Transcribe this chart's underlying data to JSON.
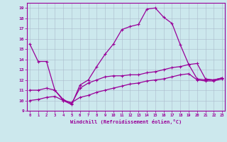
{
  "xlabel": "Windchill (Refroidissement éolien,°C)",
  "bg_color": "#cce8ed",
  "line_color": "#990099",
  "grid_color": "#aabbcc",
  "x_ticks": [
    0,
    1,
    2,
    3,
    4,
    5,
    6,
    7,
    8,
    9,
    10,
    11,
    12,
    13,
    14,
    15,
    16,
    17,
    18,
    19,
    20,
    21,
    22,
    23
  ],
  "y_ticks": [
    9,
    10,
    11,
    12,
    13,
    14,
    15,
    16,
    17,
    18,
    19
  ],
  "ylim": [
    9.0,
    19.5
  ],
  "xlim": [
    -0.3,
    23.3
  ],
  "curve_x": [
    0,
    1,
    2,
    3,
    4,
    5,
    6,
    7,
    8,
    9,
    10,
    11,
    12,
    13,
    14,
    15,
    16,
    17,
    18,
    19,
    20,
    21,
    22,
    23
  ],
  "curve_y": [
    15.5,
    13.8,
    13.8,
    11.0,
    10.0,
    9.6,
    11.5,
    12.0,
    13.3,
    14.5,
    15.5,
    16.9,
    17.2,
    17.4,
    18.9,
    19.0,
    18.1,
    17.5,
    15.4,
    13.5,
    13.6,
    12.1,
    12.0,
    12.2
  ],
  "mid_x": [
    0,
    1,
    2,
    3,
    4,
    5,
    6,
    7,
    8,
    9,
    10,
    11,
    12,
    13,
    14,
    15,
    16,
    17,
    18,
    19,
    20,
    21,
    22,
    23
  ],
  "mid_y": [
    11.0,
    11.0,
    11.2,
    11.0,
    10.1,
    9.7,
    11.2,
    11.7,
    12.0,
    12.3,
    12.4,
    12.4,
    12.5,
    12.5,
    12.7,
    12.8,
    13.0,
    13.2,
    13.3,
    13.5,
    12.1,
    12.0,
    12.0,
    12.2
  ],
  "low_x": [
    0,
    1,
    2,
    3,
    4,
    5,
    6,
    7,
    8,
    9,
    10,
    11,
    12,
    13,
    14,
    15,
    16,
    17,
    18,
    19,
    20,
    21,
    22,
    23
  ],
  "low_y": [
    10.0,
    10.1,
    10.3,
    10.4,
    10.0,
    9.8,
    10.3,
    10.5,
    10.8,
    11.0,
    11.2,
    11.4,
    11.6,
    11.7,
    11.9,
    12.0,
    12.1,
    12.3,
    12.5,
    12.6,
    12.0,
    11.9,
    11.9,
    12.1
  ]
}
